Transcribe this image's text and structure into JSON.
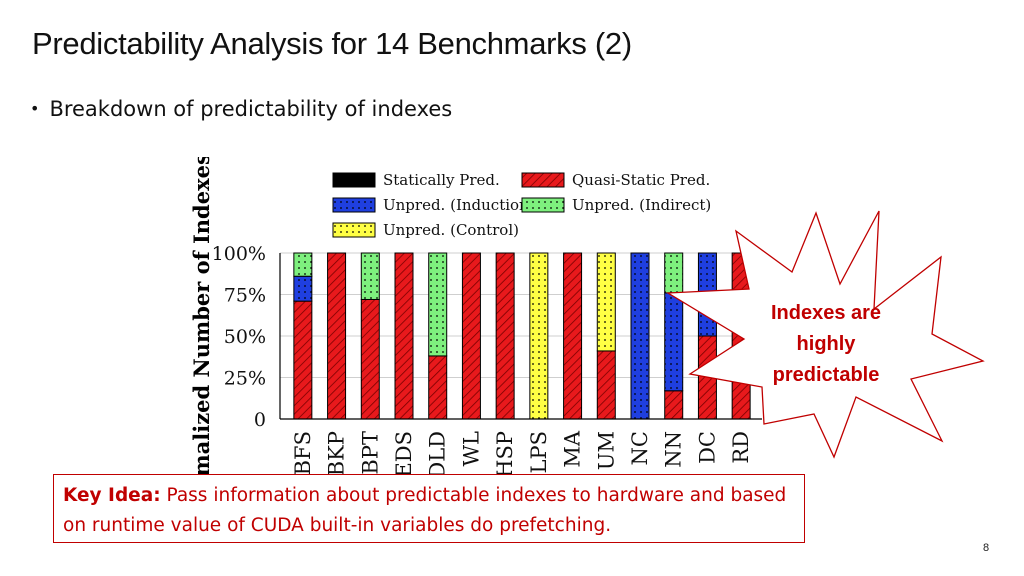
{
  "slide": {
    "title": "Predictability Analysis for 14 Benchmarks (2)",
    "bullet": "Breakdown of predictability of indexes",
    "callout": [
      "Indexes are",
      "highly",
      "predictable"
    ],
    "key_idea_label": "Key Idea:",
    "key_idea_text": " Pass information about predictable indexes to hardware and based on runtime value of CUDA built-in variables do prefetching.",
    "page_number": "8"
  },
  "colors": {
    "title_text": "#111111",
    "accent_red": "#c00000",
    "statically_pred": "#000000",
    "quasi_static_pred": "#e8191c",
    "unpred_induction": "#1f3fe0",
    "unpred_indirect": "#7ef07e",
    "unpred_control": "#ffff44"
  },
  "chart_data": {
    "type": "bar",
    "stacked": true,
    "ylabel": "Normalized Number of Indexes",
    "ylim": [
      0,
      100
    ],
    "yticks": [
      "0",
      "25%",
      "50%",
      "75%",
      "100%"
    ],
    "categories": [
      "BFS",
      "BKP",
      "BPT",
      "CEDS",
      "DLD",
      "WL",
      "HSP",
      "LPS",
      "MA",
      "UM",
      "NC",
      "NN",
      "DC",
      "RD"
    ],
    "legend_placement": "top",
    "grid": true,
    "series": [
      {
        "name": "Statically Pred.",
        "pattern": "solid",
        "values": [
          0,
          0,
          0,
          0,
          0,
          0,
          0,
          0,
          0,
          0,
          0,
          0,
          0,
          0
        ]
      },
      {
        "name": "Quasi-Static Pred.",
        "pattern": "hatch",
        "values": [
          71,
          100,
          72,
          100,
          38,
          100,
          100,
          0,
          100,
          41,
          0,
          17,
          50,
          100
        ]
      },
      {
        "name": "Unpred. (Induction)",
        "pattern": "dots",
        "values": [
          15,
          0,
          0,
          0,
          0,
          0,
          0,
          0,
          0,
          0,
          100,
          59,
          50,
          0
        ]
      },
      {
        "name": "Unpred. (Indirect)",
        "pattern": "dots",
        "values": [
          14,
          0,
          28,
          0,
          62,
          0,
          0,
          0,
          0,
          0,
          0,
          24,
          0,
          0
        ]
      },
      {
        "name": "Unpred. (Control)",
        "pattern": "dots",
        "values": [
          0,
          0,
          0,
          0,
          0,
          0,
          0,
          100,
          0,
          59,
          0,
          0,
          0,
          0
        ]
      }
    ]
  }
}
